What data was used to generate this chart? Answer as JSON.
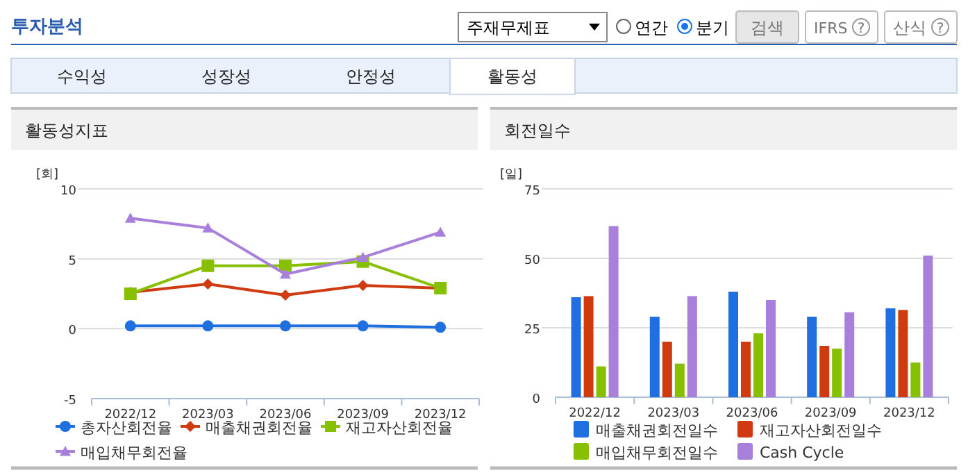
{
  "chart_data": [
    {
      "type": "other",
      "annotations": [
        "투자분석",
        "주재무제표",
        "연간",
        "분기",
        "검색",
        "IFRS",
        "?",
        "산식",
        "?",
        "수익성",
        "성장성",
        "안정성",
        "활동성"
      ]
    },
    {
      "type": "line",
      "title": "활동성지표",
      "ylabel": "[회]",
      "categories": [
        "2022/12",
        "2023/03",
        "2023/06",
        "2023/09",
        "2023/12"
      ],
      "ylim": [
        -5,
        10
      ],
      "yticks": [
        -5,
        0,
        5,
        10
      ],
      "grid": "y",
      "legend": "bottom",
      "series": [
        {
          "name": "총자산회전율",
          "color": "#1f6fe0",
          "marker": "circle",
          "values": [
            0.2,
            0.2,
            0.2,
            0.2,
            0.1
          ]
        },
        {
          "name": "매출채권회전율",
          "color": "#d03a10",
          "marker": "diamond",
          "values": [
            2.6,
            3.2,
            2.4,
            3.1,
            2.9
          ]
        },
        {
          "name": "재고자산회전율",
          "color": "#86c000",
          "marker": "square",
          "values": [
            2.5,
            4.5,
            4.5,
            4.8,
            2.9
          ]
        },
        {
          "name": "매입채무회전율",
          "color": "#a97fdc",
          "marker": "triangle",
          "values": [
            7.9,
            7.2,
            3.9,
            5.1,
            6.9
          ]
        }
      ]
    },
    {
      "type": "bar",
      "title": "회전일수",
      "ylabel": "[일]",
      "categories": [
        "2022/12",
        "2023/03",
        "2023/06",
        "2023/09",
        "2023/12"
      ],
      "ylim": [
        0,
        75
      ],
      "yticks": [
        0,
        25,
        50,
        75
      ],
      "grid": "y",
      "legend": "bottom",
      "series": [
        {
          "name": "매출채권회전일수",
          "color": "#1f6fe0",
          "values": [
            36,
            29,
            38,
            29,
            32
          ]
        },
        {
          "name": "재고자산회전일수",
          "color": "#d03a10",
          "values": [
            36.4,
            20,
            20,
            18.5,
            31.4
          ]
        },
        {
          "name": "매입채무회전일수",
          "color": "#86c000",
          "values": [
            11.1,
            12.1,
            23,
            17.5,
            12.5
          ]
        },
        {
          "name": "Cash Cycle",
          "color": "#a97fdc",
          "values": [
            61.6,
            36.4,
            35,
            30.6,
            51
          ]
        }
      ]
    }
  ]
}
